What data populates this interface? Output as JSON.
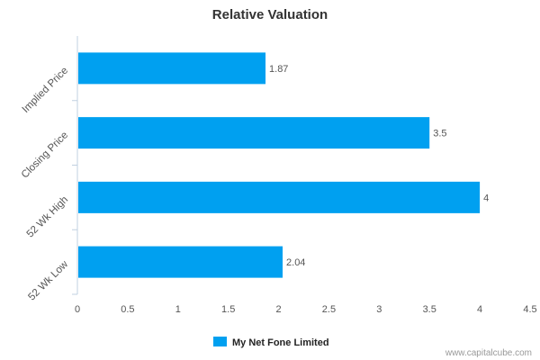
{
  "chart_data": {
    "type": "bar",
    "orientation": "horizontal",
    "title": "Relative Valuation",
    "xlabel": "",
    "ylabel": "",
    "categories": [
      "Implied Price",
      "Closing Price",
      "52 Wk High",
      "52 Wk Low"
    ],
    "series": [
      {
        "name": "My Net Fone Limited",
        "values": [
          1.87,
          3.5,
          4,
          2.04
        ],
        "color": "#00a0f0"
      }
    ],
    "value_labels": [
      "1.87",
      "3.5",
      "4",
      "2.04"
    ],
    "xlim": [
      0,
      4.5
    ],
    "x_ticks": [
      "0",
      "0.5",
      "1",
      "1.5",
      "2",
      "2.5",
      "3",
      "3.5",
      "4",
      "4.5"
    ],
    "grid": false,
    "legend_position": "bottom"
  },
  "credit": "www.capitalcube.com"
}
